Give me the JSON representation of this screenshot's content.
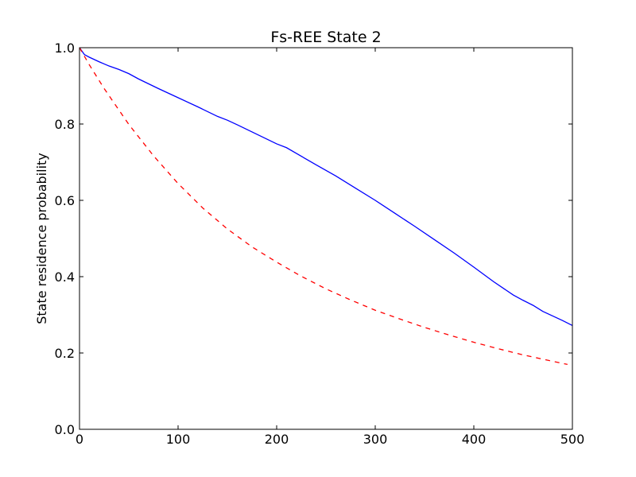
{
  "chart_data": {
    "type": "line",
    "title": "Fs-REE State 2",
    "xlabel": "",
    "ylabel": "State residence probability",
    "xlim": [
      0,
      500
    ],
    "ylim": [
      0.0,
      1.0
    ],
    "x_ticks": [
      "0",
      "100",
      "200",
      "300",
      "400",
      "500"
    ],
    "y_ticks": [
      "0.0",
      "0.2",
      "0.4",
      "0.6",
      "0.8",
      "1.0"
    ],
    "x_tick_values": [
      0,
      100,
      200,
      300,
      400,
      500
    ],
    "y_tick_values": [
      0.0,
      0.2,
      0.4,
      0.6,
      0.8,
      1.0
    ],
    "grid": false,
    "legend": "none",
    "series": [
      {
        "color": "#0000ff",
        "style": "solid",
        "x": [
          0,
          5,
          10,
          20,
          30,
          40,
          50,
          60,
          80,
          100,
          120,
          140,
          150,
          160,
          180,
          200,
          210,
          220,
          240,
          260,
          280,
          300,
          320,
          340,
          360,
          380,
          400,
          420,
          440,
          450,
          460,
          470,
          480,
          490,
          500
        ],
        "y": [
          1.0,
          0.982,
          0.975,
          0.963,
          0.952,
          0.943,
          0.932,
          0.918,
          0.893,
          0.869,
          0.845,
          0.82,
          0.81,
          0.798,
          0.773,
          0.748,
          0.738,
          0.723,
          0.693,
          0.664,
          0.632,
          0.6,
          0.566,
          0.532,
          0.497,
          0.462,
          0.425,
          0.387,
          0.352,
          0.338,
          0.325,
          0.309,
          0.297,
          0.285,
          0.272
        ]
      },
      {
        "color": "#ff0000",
        "style": "dashed",
        "x": [
          0,
          10,
          25,
          50,
          75,
          100,
          125,
          150,
          175,
          200,
          225,
          250,
          275,
          300,
          325,
          350,
          375,
          400,
          425,
          450,
          475,
          495
        ],
        "y": [
          1.0,
          0.955,
          0.893,
          0.799,
          0.717,
          0.644,
          0.58,
          0.525,
          0.478,
          0.438,
          0.401,
          0.368,
          0.339,
          0.312,
          0.289,
          0.267,
          0.247,
          0.228,
          0.211,
          0.195,
          0.181,
          0.17
        ]
      }
    ]
  }
}
